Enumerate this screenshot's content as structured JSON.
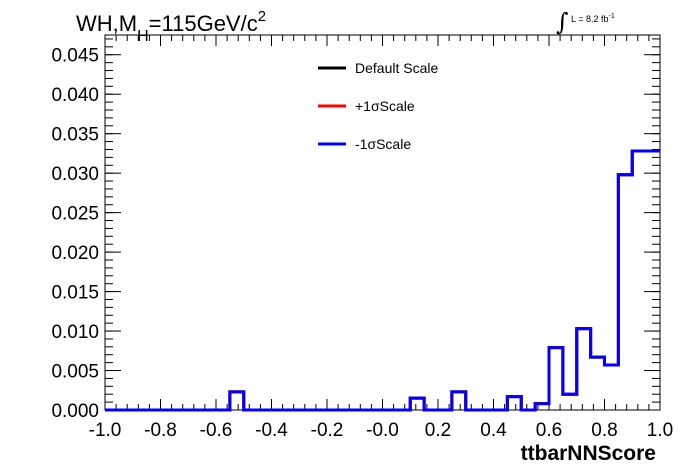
{
  "header": {
    "title_prefix": "WH,M",
    "title_sub": "H",
    "title_mid": "=115GeV/c",
    "title_sup": "2",
    "lumi_integral": "∫",
    "lumi_text": "L = 8.2 fb",
    "lumi_exp": "-1"
  },
  "colors": {
    "default": "#000000",
    "plus": "#ff0000",
    "minus": "#0000ff"
  },
  "chart_data": {
    "type": "line",
    "title": "WH,M_H=115GeV/c^2",
    "xlabel": "ttbarNNScore",
    "ylabel": "",
    "xlim": [
      -1.0,
      1.0
    ],
    "ylim": [
      0.0,
      0.0475
    ],
    "xticks": [
      "-1.0",
      "-0.8",
      "-0.6",
      "-0.4",
      "-0.2",
      "-0.0",
      "0.2",
      "0.4",
      "0.6",
      "0.8",
      "1.0"
    ],
    "yticks": [
      "0.000",
      "0.005",
      "0.010",
      "0.015",
      "0.020",
      "0.025",
      "0.030",
      "0.035",
      "0.040",
      "0.045"
    ],
    "legend_position": "top-center",
    "bin_edges": [
      -1.0,
      -0.95,
      -0.9,
      -0.85,
      -0.8,
      -0.75,
      -0.7,
      -0.65,
      -0.6,
      -0.55,
      -0.5,
      -0.45,
      -0.4,
      -0.35,
      -0.3,
      -0.25,
      -0.2,
      -0.15,
      -0.1,
      -0.05,
      0.0,
      0.05,
      0.1,
      0.15,
      0.2,
      0.25,
      0.3,
      0.35,
      0.4,
      0.45,
      0.5,
      0.55,
      0.6,
      0.65,
      0.7,
      0.75,
      0.8,
      0.85,
      0.9,
      0.95,
      1.0
    ],
    "series": [
      {
        "name": "Default Scale",
        "color": "#000000",
        "values": [
          0,
          0,
          0,
          0,
          0,
          0,
          0,
          0,
          0,
          0.0023,
          0,
          0,
          0,
          0,
          0,
          0,
          0,
          0,
          0,
          0,
          0,
          0,
          0.0015,
          0,
          0,
          0.0023,
          0,
          0,
          0,
          0.0017,
          0,
          0.0008,
          0.0079,
          0.002,
          0.0103,
          0.0067,
          0.0057,
          0.0298,
          0.0328,
          0.0328
        ]
      },
      {
        "name": "+1σScale",
        "color": "#ff0000",
        "values": [
          0,
          0,
          0,
          0,
          0,
          0,
          0,
          0,
          0,
          0.0023,
          0,
          0,
          0,
          0,
          0,
          0,
          0,
          0,
          0,
          0,
          0,
          0,
          0.0015,
          0,
          0,
          0.0023,
          0,
          0,
          0,
          0.0017,
          0,
          0.0008,
          0.0079,
          0.002,
          0.0103,
          0.0067,
          0.0057,
          0.0298,
          0.0328,
          0.0328
        ]
      },
      {
        "name": "-1σScale",
        "color": "#0000ff",
        "values": [
          0,
          0,
          0,
          0,
          0,
          0,
          0,
          0,
          0,
          0.0023,
          0,
          0,
          0,
          0,
          0,
          0,
          0,
          0,
          0,
          0,
          0,
          0,
          0.0015,
          0,
          0,
          0.0023,
          0,
          0,
          0,
          0.0017,
          0,
          0.0008,
          0.0079,
          0.002,
          0.0103,
          0.0067,
          0.0057,
          0.0298,
          0.0328,
          0.0328
        ]
      }
    ]
  }
}
